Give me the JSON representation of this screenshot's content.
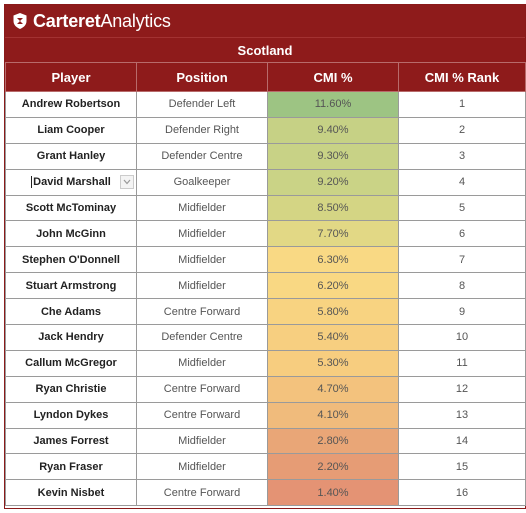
{
  "brand": {
    "name_bold": "Carteret",
    "name_regular": "Analytics",
    "logo_icon": "shield-logo-icon"
  },
  "team": "Scotland",
  "columns": [
    "Player",
    "Position",
    "CMI %",
    "CMI % Rank"
  ],
  "rows": [
    {
      "player": "Andrew Robertson",
      "position": "Defender Left",
      "cmi": "11.60%",
      "rank": "1",
      "color": "#9dc483"
    },
    {
      "player": "Liam Cooper",
      "position": "Defender Right",
      "cmi": "9.40%",
      "rank": "2",
      "color": "#c6d185"
    },
    {
      "player": "Grant Hanley",
      "position": "Defender Centre",
      "cmi": "9.30%",
      "rank": "3",
      "color": "#c8d286"
    },
    {
      "player": "David Marshall",
      "position": "Goalkeeper",
      "cmi": "9.20%",
      "rank": "4",
      "color": "#cad386"
    },
    {
      "player": "Scott McTominay",
      "position": "Midfielder",
      "cmi": "8.50%",
      "rank": "5",
      "color": "#d4d584"
    },
    {
      "player": "John McGinn",
      "position": "Midfielder",
      "cmi": "7.70%",
      "rank": "6",
      "color": "#e2d885"
    },
    {
      "player": "Stephen O'Donnell",
      "position": "Midfielder",
      "cmi": "6.30%",
      "rank": "7",
      "color": "#f9d984"
    },
    {
      "player": "Stuart Armstrong",
      "position": "Midfielder",
      "cmi": "6.20%",
      "rank": "8",
      "color": "#f9d883"
    },
    {
      "player": "Che Adams",
      "position": "Centre Forward",
      "cmi": "5.80%",
      "rank": "9",
      "color": "#f8d381"
    },
    {
      "player": "Jack Hendry",
      "position": "Defender Centre",
      "cmi": "5.40%",
      "rank": "10",
      "color": "#f7cf80"
    },
    {
      "player": "Callum McGregor",
      "position": "Midfielder",
      "cmi": "5.30%",
      "rank": "11",
      "color": "#f7cd7f"
    },
    {
      "player": "Ryan Christie",
      "position": "Centre Forward",
      "cmi": "4.70%",
      "rank": "12",
      "color": "#f3c27d"
    },
    {
      "player": "Lyndon Dykes",
      "position": "Centre Forward",
      "cmi": "4.10%",
      "rank": "13",
      "color": "#f0bb7c"
    },
    {
      "player": "James Forrest",
      "position": "Midfielder",
      "cmi": "2.80%",
      "rank": "14",
      "color": "#e9a677"
    },
    {
      "player": "Ryan Fraser",
      "position": "Midfielder",
      "cmi": "2.20%",
      "rank": "15",
      "color": "#e69c75"
    },
    {
      "player": "Kevin Nisbet",
      "position": "Centre Forward",
      "cmi": "1.40%",
      "rank": "16",
      "color": "#e49374"
    }
  ],
  "selected_row": 3,
  "dropdown_icon": "chevron-down-icon"
}
